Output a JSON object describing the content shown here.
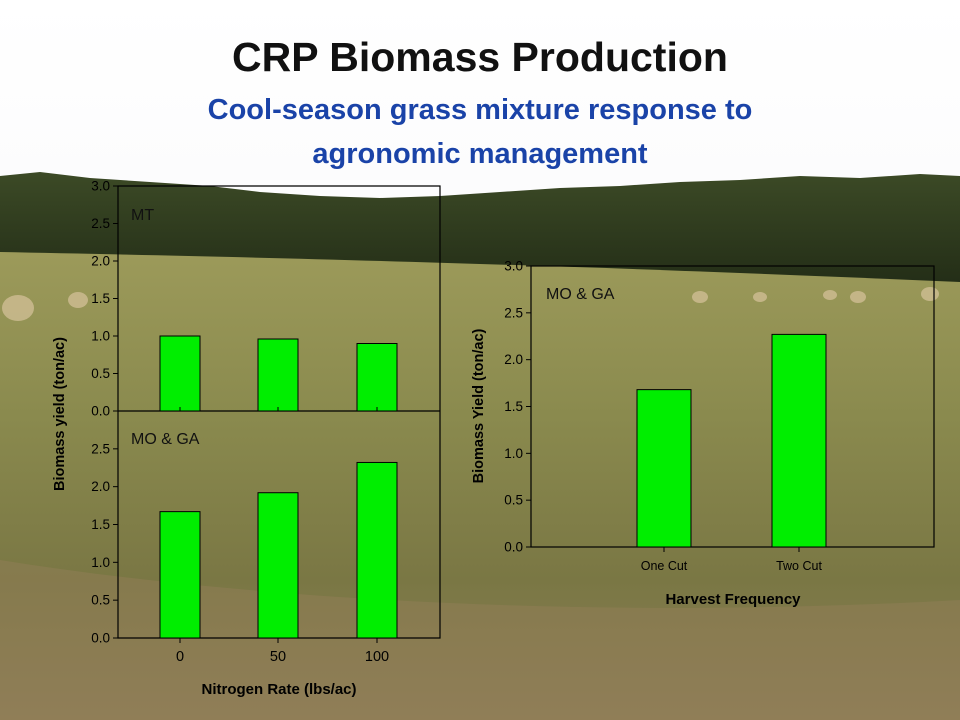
{
  "title": "CRP Biomass Production",
  "subtitle_line1": "Cool-season grass mixture response to",
  "subtitle_line2": "agronomic management",
  "colors": {
    "bar_fill": "#00ee00",
    "bar_stroke": "#000000",
    "title": "#111111",
    "subtitle": "#1a43a8"
  },
  "chart_data": [
    {
      "type": "bar",
      "panel_label": "MT",
      "categories": [
        "0",
        "50",
        "100"
      ],
      "values": [
        1.0,
        0.96,
        0.9
      ],
      "ylim": [
        0,
        3.0
      ],
      "yticks": [
        "0.0",
        "0.5",
        "1.0",
        "1.5",
        "2.0",
        "2.5",
        "3.0"
      ],
      "xlabel": "",
      "ylabel": "",
      "grid": false
    },
    {
      "type": "bar",
      "panel_label": "MO & GA",
      "categories": [
        "0",
        "50",
        "100"
      ],
      "values": [
        1.67,
        1.92,
        2.32
      ],
      "ylim": [
        0,
        3.0
      ],
      "yticks": [
        "0.0",
        "0.5",
        "1.0",
        "1.5",
        "2.0",
        "2.5"
      ],
      "xlabel": "Nitrogen Rate (lbs/ac)",
      "ylabel": "Biomass yield (ton/ac)",
      "grid": false
    },
    {
      "type": "bar",
      "panel_label": "MO & GA",
      "categories": [
        "One Cut",
        "Two Cut"
      ],
      "values": [
        1.68,
        2.27
      ],
      "ylim": [
        0,
        3.0
      ],
      "yticks": [
        "0.0",
        "0.5",
        "1.0",
        "1.5",
        "2.0",
        "2.5",
        "3.0"
      ],
      "xlabel": "Harvest Frequency",
      "ylabel": "Biomass Yield (ton/ac)",
      "grid": false
    }
  ]
}
